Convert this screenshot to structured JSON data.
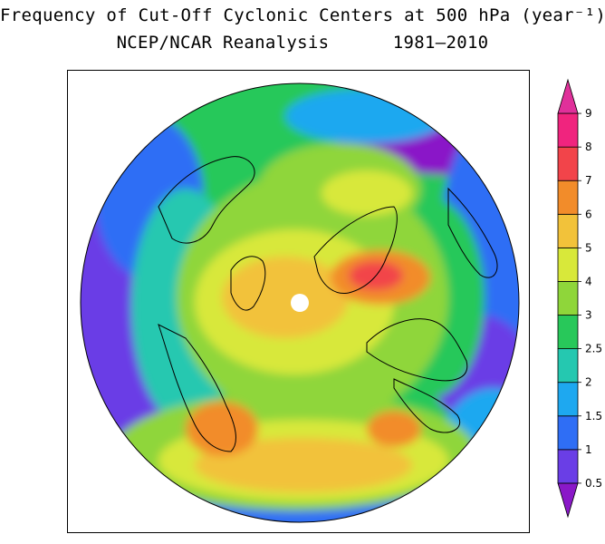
{
  "title": {
    "line1": "Frequency of Cut-Off Cyclonic Centers at 500 hPa (year⁻¹)",
    "line2": "NCEP/NCAR Reanalysis      1981–2010"
  },
  "colorbar": {
    "levels": [
      "0.5",
      "1",
      "1.5",
      "2",
      "2.5",
      "3",
      "4",
      "5",
      "6",
      "7",
      "8",
      "9"
    ],
    "colors": [
      "#8a18c8",
      "#6a3ee6",
      "#2f6ef5",
      "#1ea8f0",
      "#25c8b0",
      "#28c85a",
      "#8fd63a",
      "#d8e83a",
      "#f2c23a",
      "#f28c2a",
      "#f2444a",
      "#f0247e",
      "#e0309a"
    ]
  },
  "map": {
    "projection": "north polar stereographic",
    "colors": {
      "purple": "#8a18c8",
      "violet": "#6a3ee6",
      "blue": "#2f6ef5",
      "sky": "#1ea8f0",
      "cyan": "#25c8b0",
      "green": "#28c85a",
      "lime": "#8fd63a",
      "yellow": "#d8e83a",
      "gold": "#f2c23a",
      "orange": "#f28c2a",
      "red": "#f2444a"
    }
  }
}
